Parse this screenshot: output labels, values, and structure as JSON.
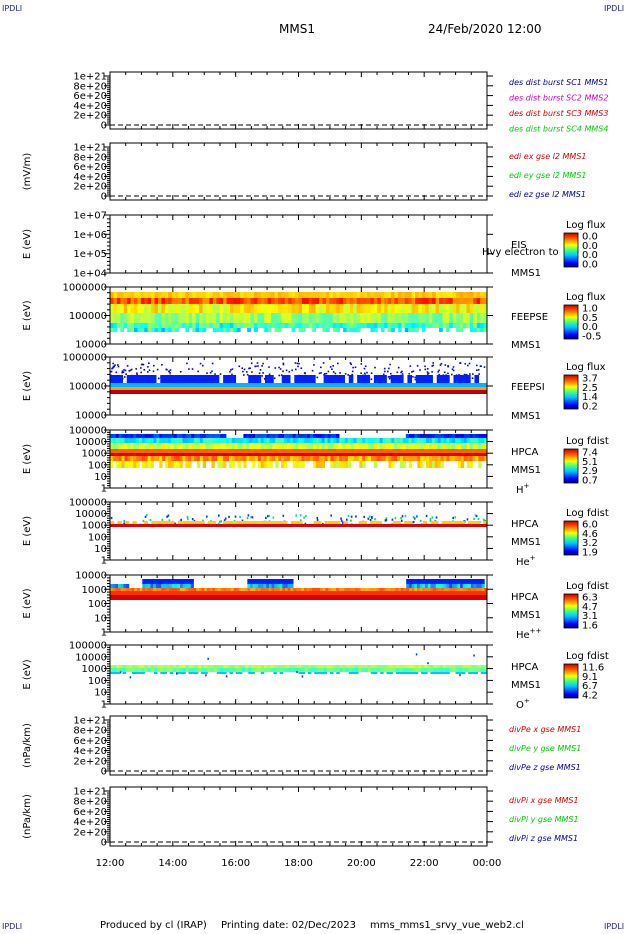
{
  "corners": {
    "tl": "IPDLI",
    "tr": "IPDLI",
    "bl": "IPDLI",
    "br": "IPDLI"
  },
  "header": {
    "spacecraft": "MMS1",
    "datetime": "24/Feb/2020 12:00"
  },
  "footer": {
    "produced": "Produced by cl (IRAP)",
    "printed": "Printing date: 02/Dec/2023",
    "file": "mms_mms1_srvy_vue_web2.cl"
  },
  "colors": {
    "red": "#dd0000",
    "magenta": "#cc00cc",
    "green": "#00cc00",
    "blue": "#0000aa"
  },
  "chart_data": [
    {
      "type": "line",
      "ylabel": "",
      "ytick_labels": [
        "1e+21",
        "8e+20",
        "6e+20",
        "4e+20",
        "2e+20",
        "0"
      ],
      "legend": [
        {
          "name": "des dist burst SC1 MMS1",
          "color": "#0000aa"
        },
        {
          "name": "des dist burst SC2 MMS2",
          "color": "#cc00cc"
        },
        {
          "name": "des dist burst SC3 MMS3",
          "color": "#dd0000"
        },
        {
          "name": "des dist burst SC4 MMS4",
          "color": "#00cc00"
        }
      ]
    },
    {
      "type": "line",
      "ylabel": "(mV/m)",
      "ytick_labels": [
        "1e+21",
        "8e+20",
        "6e+20",
        "4e+20",
        "2e+20",
        "0"
      ],
      "legend": [
        {
          "name": "edi ex gse l2 MMS1",
          "color": "#dd0000"
        },
        {
          "name": "edi ey gse l2 MMS1",
          "color": "#00cc00"
        },
        {
          "name": "edi ez gse l2 MMS1",
          "color": "#0000aa"
        }
      ]
    },
    {
      "type": "heatmap",
      "ylabel": "E (eV)",
      "ytick_labels": [
        "1e+07",
        "1e+06",
        "1e+05",
        "1e+04"
      ],
      "instrument": [
        "EIS",
        "MMS1"
      ],
      "overlay": "Hvy electron to",
      "colorbar": {
        "title": "Log flux",
        "ticks": [
          "0.0",
          "0.0",
          "0.0",
          "0.0"
        ]
      }
    },
    {
      "type": "heatmap",
      "ylabel": "E (eV)",
      "ytick_labels": [
        "1000000",
        "100000",
        "10000"
      ],
      "instrument": [
        "FEEPSE",
        "MMS1"
      ],
      "colorbar": {
        "title": "Log flux",
        "ticks": [
          "1.0",
          "0.5",
          "0.0",
          "-0.5"
        ]
      }
    },
    {
      "type": "heatmap",
      "ylabel": "E (eV)",
      "ytick_labels": [
        "1000000",
        "100000",
        "10000"
      ],
      "instrument": [
        "FEEPSI",
        "MMS1"
      ],
      "colorbar": {
        "title": "Log flux",
        "ticks": [
          "3.7",
          "2.5",
          "1.4",
          "0.2"
        ]
      }
    },
    {
      "type": "heatmap",
      "ylabel": "E (eV)",
      "ytick_labels": [
        "100000",
        "10000",
        "1000",
        "100",
        "10",
        "1"
      ],
      "instrument": [
        "HPCA",
        "MMS1",
        "H+"
      ],
      "colorbar": {
        "title": "Log fdist",
        "ticks": [
          "7.4",
          "5.1",
          "2.9",
          "0.7"
        ]
      }
    },
    {
      "type": "heatmap",
      "ylabel": "E (eV)",
      "ytick_labels": [
        "100000",
        "10000",
        "1000",
        "100",
        "10",
        "1"
      ],
      "instrument": [
        "HPCA",
        "MMS1",
        "He+"
      ],
      "colorbar": {
        "title": "Log fdist",
        "ticks": [
          "6.0",
          "4.6",
          "3.2",
          "1.9"
        ]
      }
    },
    {
      "type": "heatmap",
      "ylabel": "E (eV)",
      "ytick_labels": [
        "10000",
        "1000",
        "100",
        "10",
        "1"
      ],
      "instrument": [
        "HPCA",
        "MMS1",
        "He++"
      ],
      "colorbar": {
        "title": "Log fdist",
        "ticks": [
          "6.3",
          "4.7",
          "3.1",
          "1.6"
        ]
      }
    },
    {
      "type": "heatmap",
      "ylabel": "E (eV)",
      "ytick_labels": [
        "100000",
        "10000",
        "1000",
        "100",
        "10",
        "1"
      ],
      "instrument": [
        "HPCA",
        "MMS1",
        "O+"
      ],
      "colorbar": {
        "title": "Log fdist",
        "ticks": [
          "11.6",
          "9.1",
          "6.7",
          "4.2"
        ]
      }
    },
    {
      "type": "line",
      "ylabel": "(nPa/km)",
      "ytick_labels": [
        "1e+21",
        "8e+20",
        "6e+20",
        "4e+20",
        "2e+20",
        "0"
      ],
      "legend": [
        {
          "name": "divPe x gse MMS1",
          "color": "#dd0000"
        },
        {
          "name": "divPe y gse MMS1",
          "color": "#00cc00"
        },
        {
          "name": "divPe z gse MMS1",
          "color": "#0000aa"
        }
      ]
    },
    {
      "type": "line",
      "ylabel": "(nPa/km)",
      "ytick_labels": [
        "1e+21",
        "8e+20",
        "6e+20",
        "4e+20",
        "2e+20",
        "0"
      ],
      "legend": [
        {
          "name": "divPi x gse MMS1",
          "color": "#dd0000"
        },
        {
          "name": "divPi y gse MMS1",
          "color": "#00cc00"
        },
        {
          "name": "divPi z gse MMS1",
          "color": "#0000aa"
        }
      ]
    }
  ],
  "xaxis": {
    "tick_labels": [
      "12:00",
      "14:00",
      "16:00",
      "18:00",
      "20:00",
      "22:00",
      "00:00"
    ]
  }
}
